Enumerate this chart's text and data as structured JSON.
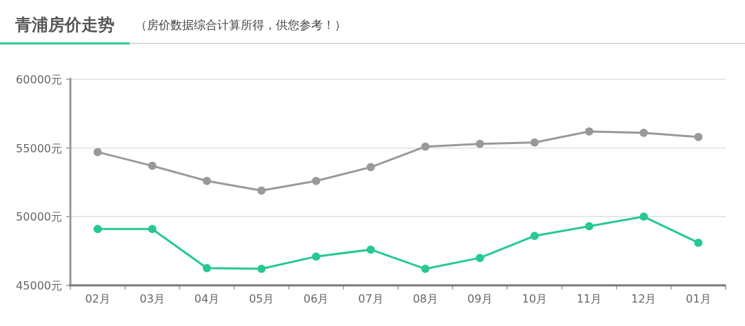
{
  "chart_data": {
    "type": "line",
    "title": "青浦房价走势",
    "subtitle": "（房价数据综合计算所得，供您参考！）",
    "categories": [
      "02月",
      "03月",
      "04月",
      "05月",
      "06月",
      "07月",
      "08月",
      "09月",
      "10月",
      "11月",
      "12月",
      "01月"
    ],
    "series": [
      {
        "color": "#999999",
        "values": [
          54700,
          53700,
          52600,
          51900,
          52600,
          53600,
          55100,
          55300,
          55400,
          56200,
          56100,
          55800
        ]
      },
      {
        "color": "#26c98f",
        "values": [
          49100,
          49100,
          46250,
          46200,
          47100,
          47600,
          46200,
          47000,
          48600,
          49300,
          50000,
          48100
        ]
      }
    ],
    "ylim": [
      45000,
      60000
    ],
    "yticks": [
      {
        "value": 45000,
        "label": "45000元"
      },
      {
        "value": 50000,
        "label": "50000元"
      },
      {
        "value": 55000,
        "label": "55000元"
      },
      {
        "value": 60000,
        "label": "60000元"
      }
    ],
    "grid": "y",
    "marker": "circle"
  }
}
